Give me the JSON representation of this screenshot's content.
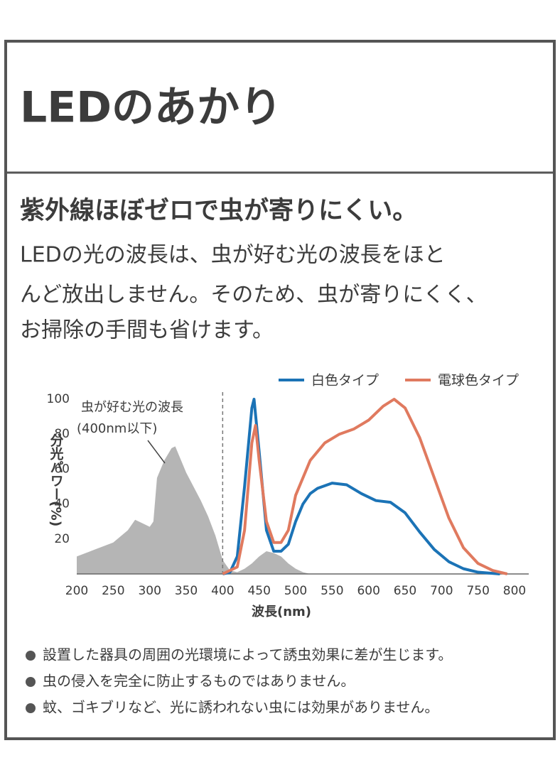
{
  "header": {
    "title": "LEDのあかり"
  },
  "heading": "紫外線ほぼゼロで虫が寄りにくい。",
  "body": [
    "LEDの光の波長は、虫が好む光の波長をほと",
    "んど放出しません。そのため、虫が寄りにくく、",
    "お掃除の手間も省けます。"
  ],
  "chart_data": {
    "type": "line",
    "xlabel": "波長(nm)",
    "ylabel": "分光パワー(%)",
    "annotations": [
      "虫が好む光の波長",
      "(400nm以下)"
    ],
    "xlim": [
      200,
      800
    ],
    "ylim": [
      0,
      100
    ],
    "xticks": [
      200,
      250,
      300,
      350,
      400,
      450,
      500,
      550,
      600,
      650,
      700,
      750,
      800
    ],
    "yticks": [
      20,
      40,
      60,
      80,
      100
    ],
    "vline": 400,
    "area": {
      "color": "#b5b5b5",
      "x": [
        200,
        225,
        250,
        270,
        280,
        290,
        300,
        305,
        310,
        320,
        330,
        335,
        340,
        350,
        360,
        370,
        380,
        390,
        400,
        410,
        420,
        430,
        440,
        450,
        460,
        470,
        480,
        490,
        500,
        510,
        520
      ],
      "values": [
        10,
        14,
        18,
        25,
        31,
        29,
        27,
        30,
        55,
        65,
        72,
        73,
        68,
        58,
        50,
        42,
        33,
        22,
        8,
        2,
        1,
        3,
        6,
        10,
        13,
        12,
        10,
        6,
        3,
        1,
        0
      ]
    },
    "series": [
      {
        "name": "白色タイプ",
        "color": "#1b73b6",
        "x": [
          400,
          410,
          420,
          430,
          440,
          443,
          450,
          460,
          470,
          480,
          490,
          500,
          510,
          520,
          530,
          550,
          570,
          590,
          610,
          630,
          650,
          670,
          690,
          710,
          730,
          750,
          780
        ],
        "values": [
          0,
          1,
          10,
          50,
          95,
          100,
          70,
          25,
          13,
          13,
          17,
          30,
          40,
          46,
          49,
          52,
          51,
          46,
          42,
          41,
          35,
          24,
          14,
          7,
          3,
          1,
          0
        ]
      },
      {
        "name": "電球色タイプ",
        "color": "#e07a5f",
        "x": [
          400,
          420,
          430,
          440,
          445,
          450,
          460,
          470,
          480,
          490,
          500,
          520,
          540,
          560,
          580,
          600,
          620,
          635,
          650,
          670,
          690,
          710,
          730,
          750,
          770,
          790
        ],
        "values": [
          0,
          4,
          25,
          75,
          85,
          65,
          30,
          18,
          18,
          25,
          45,
          65,
          75,
          80,
          83,
          88,
          96,
          100,
          95,
          78,
          55,
          32,
          15,
          6,
          2,
          0
        ]
      }
    ]
  },
  "notes": [
    "設置した器具の周囲の光環境によって誘虫効果に差が生じます。",
    "虫の侵入を完全に防止するものではありません。",
    "蚊、ゴキブリなど、光に誘われない虫には効果がありません。"
  ]
}
